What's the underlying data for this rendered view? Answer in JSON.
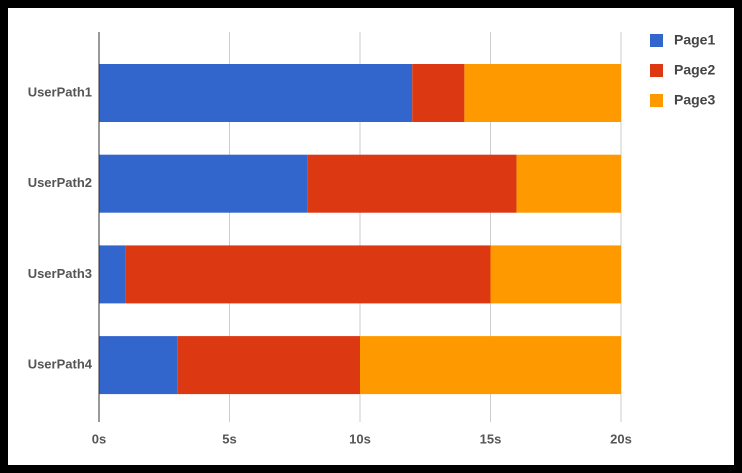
{
  "chart_data": {
    "type": "bar",
    "orientation": "horizontal",
    "stacked": true,
    "categories": [
      "UserPath1",
      "UserPath2",
      "UserPath3",
      "UserPath4"
    ],
    "series": [
      {
        "name": "Page1",
        "color": "#3366cc",
        "values": [
          12,
          8,
          1,
          3
        ]
      },
      {
        "name": "Page2",
        "color": "#dc3912",
        "values": [
          2,
          8,
          14,
          7
        ]
      },
      {
        "name": "Page3",
        "color": "#ff9900",
        "values": [
          6,
          4,
          5,
          10
        ]
      }
    ],
    "xlim": [
      0,
      20
    ],
    "xticks": [
      {
        "value": 0,
        "label": "0s"
      },
      {
        "value": 5,
        "label": "5s"
      },
      {
        "value": 10,
        "label": "10s"
      },
      {
        "value": 15,
        "label": "15s"
      },
      {
        "value": 20,
        "label": "20s"
      }
    ],
    "grid": true,
    "legend": "right"
  }
}
